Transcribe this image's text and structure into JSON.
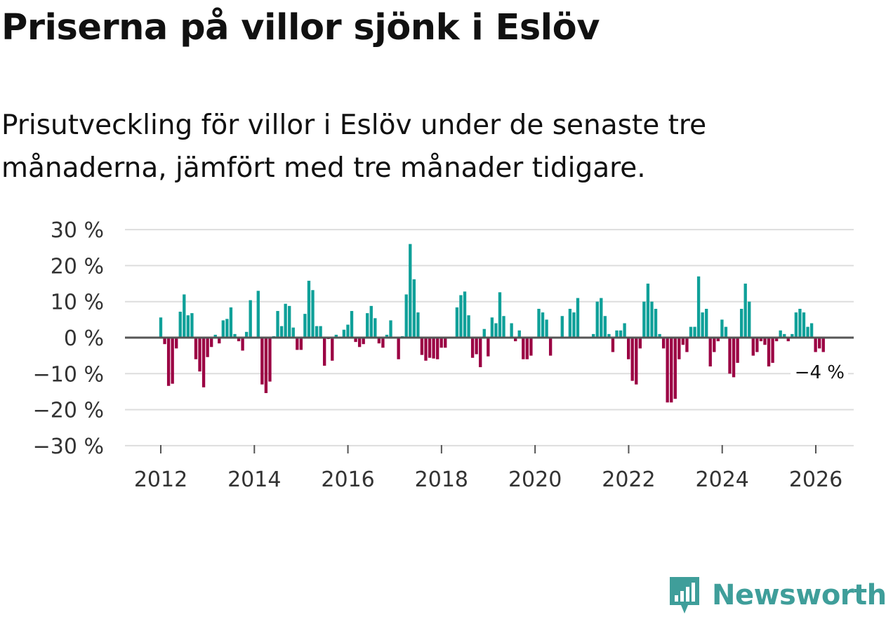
{
  "header": {
    "title": "Priserna på villor sjönk i Eslöv",
    "subtitle": "Prisutveckling för villor i Eslöv under de senaste tre månaderna, jämfört med tre månader tidigare."
  },
  "colors": {
    "positive": "#0fa099",
    "negative": "#9b0043",
    "grid": "#dddddd",
    "zero": "#555555",
    "brand": "#3f9e9a"
  },
  "brand": {
    "name": "Newsworthy",
    "icon": "bar-chart-pin-icon"
  },
  "chart_data": {
    "type": "bar",
    "title": "Priserna på villor sjönk i Eslöv",
    "xlabel": "",
    "ylabel": "",
    "ylim": [
      -30,
      30
    ],
    "yticks": [
      30,
      20,
      10,
      0,
      -10,
      -20,
      -30
    ],
    "ytick_labels": [
      "30 %",
      "20 %",
      "10 %",
      "0 %",
      "−10 %",
      "−20 %",
      "−30 %"
    ],
    "xticks": [
      2012,
      2014,
      2016,
      2018,
      2020,
      2022,
      2024,
      2026
    ],
    "xtick_labels": [
      "2012",
      "2014",
      "2016",
      "2018",
      "2020",
      "2022",
      "2024",
      "2026"
    ],
    "x_start": 2012.0,
    "x_step": 0.0833,
    "values": [
      5.6,
      -1.8,
      -13.4,
      -12.8,
      -3.0,
      7.2,
      12.0,
      6.2,
      6.8,
      -6.0,
      -9.4,
      -13.8,
      -5.4,
      -2.6,
      0.8,
      -1.6,
      4.8,
      5.2,
      8.4,
      1.0,
      -1.0,
      -3.6,
      1.6,
      10.4,
      0.2,
      13.0,
      -13.0,
      -15.4,
      -12.2,
      0.4,
      7.4,
      3.2,
      9.4,
      8.8,
      2.8,
      -3.4,
      -3.4,
      6.6,
      15.8,
      13.2,
      3.2,
      3.2,
      -7.8,
      -0.4,
      -6.4,
      0.8,
      0.2,
      2.2,
      3.6,
      7.4,
      -1.2,
      -2.6,
      -1.8,
      6.8,
      8.8,
      5.4,
      -1.6,
      -2.8,
      0.8,
      4.8,
      0.2,
      -6.0,
      0.4,
      12.0,
      26.0,
      16.2,
      7.0,
      -4.8,
      -6.4,
      -5.6,
      -5.8,
      -6.0,
      -2.8,
      -2.8,
      0.2,
      0.2,
      8.4,
      11.8,
      12.8,
      6.2,
      -5.6,
      -4.6,
      -8.2,
      2.4,
      -5.2,
      5.6,
      4.0,
      12.6,
      6.0,
      0.2,
      4.0,
      -1.0,
      2.0,
      -6.0,
      -6.0,
      -5.0,
      0.2,
      8.0,
      7.0,
      5.0,
      -5.0,
      0.2,
      0.2,
      6.0,
      0.2,
      8.0,
      7.0,
      11.0,
      0.2,
      0.2,
      0.2,
      1.0,
      10.0,
      11.0,
      6.0,
      1.0,
      -4.0,
      2.0,
      2.0,
      4.0,
      -6.0,
      -12.0,
      -13.0,
      -3.0,
      10.0,
      15.0,
      10.0,
      8.0,
      1.0,
      -3.0,
      -18.0,
      -18.0,
      -17.0,
      -6.0,
      -2.0,
      -4.0,
      3.0,
      3.0,
      17.0,
      7.0,
      8.0,
      -8.0,
      -4.0,
      -1.0,
      5.0,
      3.0,
      -10.0,
      -11.0,
      -7.0,
      8.0,
      15.0,
      10.0,
      -5.0,
      -4.0,
      -1.0,
      -2.0,
      -8.0,
      -7.0,
      -1.0,
      2.0,
      1.0,
      -1.0,
      1.0,
      7.0,
      8.0,
      7.0,
      3.0,
      4.0,
      -4.0,
      -3.0,
      -4.0
    ],
    "last_value_label": "−4 %"
  }
}
